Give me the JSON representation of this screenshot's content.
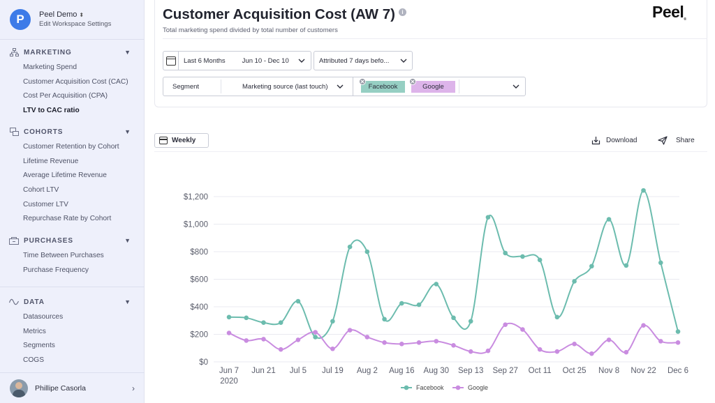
{
  "workspace": {
    "name": "Peel Demo",
    "subtitle": "Edit Workspace Settings",
    "logo_letter": "P",
    "logo_color": "#3d7be8"
  },
  "sidebar": {
    "sections": [
      {
        "key": "marketing",
        "title": "MARKETING",
        "icon": "hierarchy-icon",
        "items": [
          "Marketing Spend",
          "Customer Acquisition Cost (CAC)",
          "Cost Per Acquisition (CPA)",
          "LTV to CAC ratio"
        ],
        "active_index": 3
      },
      {
        "key": "cohorts",
        "title": "COHORTS",
        "icon": "cohorts-icon",
        "items": [
          "Customer Retention by Cohort",
          "Lifetime Revenue",
          "Average Lifetime Revenue",
          "Cohort LTV",
          "Customer LTV",
          "Repurchase Rate by Cohort"
        ]
      },
      {
        "key": "purchases",
        "title": "PURCHASES",
        "icon": "purchases-icon",
        "items": [
          "Time Between Purchases",
          "Purchase Frequency"
        ]
      },
      {
        "key": "data",
        "title": "DATA",
        "icon": "wave-icon",
        "items": [
          "Datasources",
          "Metrics",
          "Segments",
          "COGS"
        ]
      }
    ]
  },
  "user": {
    "name": "Phillipe Casorla"
  },
  "header": {
    "title": "Customer Acquisition Cost (AW 7)",
    "info_glyph": "i",
    "subtitle": "Total marketing spend divided by total number of customers",
    "brand": "Peel",
    "brand_mark": "®"
  },
  "filters": {
    "date_preset": "Last 6 Months",
    "date_range": "Jun 10 - Dec 10",
    "attribution": "Attributed 7 days befo...",
    "segment_label": "Segment",
    "segment_value": "Marketing source (last touch)",
    "tags": [
      {
        "label": "Facebook",
        "color": "#96cfc3"
      },
      {
        "label": "Google",
        "color": "#ddb4ea"
      }
    ]
  },
  "toolbar": {
    "granularity": "Weekly",
    "download_label": "Download",
    "share_label": "Share"
  },
  "colors": {
    "facebook": "#6cbcae",
    "google": "#c98ce0",
    "grid": "#e9eaf0"
  },
  "chart_data": {
    "type": "line",
    "title": "",
    "xlabel": "",
    "ylabel": "",
    "ylim": [
      0,
      1200
    ],
    "yticks": [
      0,
      200,
      400,
      600,
      800,
      1000,
      1200
    ],
    "ytick_labels": [
      "$0",
      "$200",
      "$400",
      "$600",
      "$800",
      "$1,000",
      "$1,200"
    ],
    "x": [
      "Jun 7",
      "Jun 14",
      "Jun 21",
      "Jun 28",
      "Jul 5",
      "Jul 12",
      "Jul 19",
      "Jul 26",
      "Aug 2",
      "Aug 9",
      "Aug 16",
      "Aug 23",
      "Aug 30",
      "Sep 6",
      "Sep 13",
      "Sep 20",
      "Sep 27",
      "Oct 4",
      "Oct 11",
      "Oct 18",
      "Oct 25",
      "Nov 1",
      "Nov 8",
      "Nov 15",
      "Nov 22",
      "Nov 29",
      "Dec 6"
    ],
    "xtick_labels": [
      {
        "index": 0,
        "label": "Jun 7",
        "sub": "2020"
      },
      {
        "index": 2,
        "label": "Jun 21"
      },
      {
        "index": 4,
        "label": "Jul 5"
      },
      {
        "index": 6,
        "label": "Jul 19"
      },
      {
        "index": 8,
        "label": "Aug 2"
      },
      {
        "index": 10,
        "label": "Aug 16"
      },
      {
        "index": 12,
        "label": "Aug 30"
      },
      {
        "index": 14,
        "label": "Sep 13"
      },
      {
        "index": 16,
        "label": "Sep 27"
      },
      {
        "index": 18,
        "label": "Oct 11"
      },
      {
        "index": 20,
        "label": "Oct 25"
      },
      {
        "index": 22,
        "label": "Nov 8"
      },
      {
        "index": 24,
        "label": "Nov 22"
      },
      {
        "index": 26,
        "label": "Dec 6"
      }
    ],
    "grid": "horizontal",
    "legend": "bottom-center",
    "series": [
      {
        "name": "Facebook",
        "color": "#6cbcae",
        "values": [
          325,
          320,
          285,
          285,
          440,
          180,
          295,
          835,
          800,
          310,
          425,
          415,
          565,
          320,
          295,
          1050,
          790,
          765,
          740,
          325,
          585,
          695,
          1035,
          700,
          1245,
          720,
          220
        ]
      },
      {
        "name": "Google",
        "color": "#c98ce0",
        "values": [
          210,
          155,
          165,
          90,
          160,
          215,
          95,
          230,
          180,
          140,
          130,
          140,
          150,
          120,
          75,
          80,
          270,
          235,
          90,
          75,
          130,
          60,
          160,
          70,
          265,
          150,
          140
        ]
      }
    ]
  }
}
